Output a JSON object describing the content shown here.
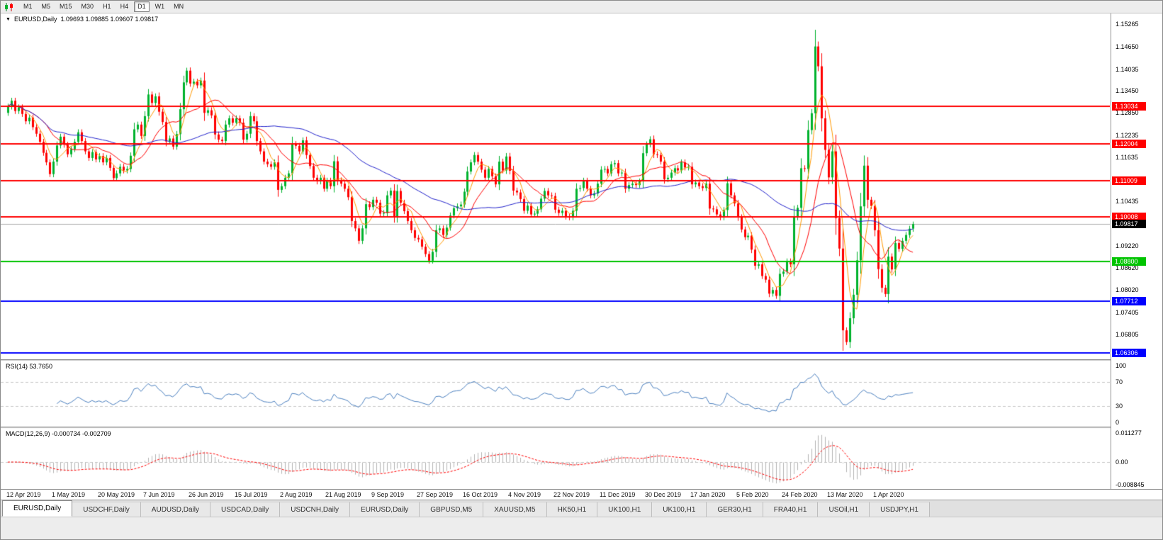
{
  "toolbar": {
    "timeframes": [
      "M1",
      "M5",
      "M15",
      "M30",
      "H1",
      "H4",
      "D1",
      "W1",
      "MN"
    ],
    "active_timeframe": "D1"
  },
  "chart": {
    "title": {
      "symbol": "EURUSD,Daily",
      "ohlc": "1.09693 1.09885 1.09607 1.09817"
    },
    "rsi_label": "RSI(14) 53.7650",
    "macd_label": "MACD(12,26,9) -0.000734 -0.002709"
  },
  "chart_data": {
    "type": "candlestick",
    "symbol": "EURUSD",
    "timeframe": "Daily",
    "last_ohlc": [
      1.09693,
      1.09885,
      1.09607,
      1.09817
    ],
    "first_open": 1.1285,
    "wick_rule": {
      "fraction": 0.25,
      "min": 0.0008
    },
    "y_range": [
      1.0613,
      1.1556
    ],
    "y_ticks": [
      "1.15265",
      "1.14650",
      "1.14035",
      "1.13450",
      "1.12850",
      "1.12235",
      "1.11635",
      "1.10435",
      "1.09220",
      "1.08620",
      "1.08020",
      "1.07405",
      "1.06805"
    ],
    "x_labels": [
      "12 Apr 2019",
      "1 May 2019",
      "20 May 2019",
      "7 Jun 2019",
      "26 Jun 2019",
      "15 Jul 2019",
      "2 Aug 2019",
      "21 Aug 2019",
      "9 Sep 2019",
      "27 Sep 2019",
      "16 Oct 2019",
      "4 Nov 2019",
      "22 Nov 2019",
      "11 Dec 2019",
      "30 Dec 2019",
      "17 Jan 2020",
      "5 Feb 2020",
      "24 Feb 2020",
      "13 Mar 2020",
      "1 Apr 2020"
    ],
    "x_label_step": 13,
    "current_price": {
      "value": 1.09817,
      "label": "1.09817",
      "line_color": "#b0b0b0",
      "badge_color": "#000000"
    },
    "hlines": [
      {
        "price": 1.13034,
        "label": "1.13034",
        "color": "#ff0000"
      },
      {
        "price": 1.12004,
        "label": "1.12004",
        "color": "#ff0000"
      },
      {
        "price": 1.11009,
        "label": "1.11009",
        "color": "#ff0000"
      },
      {
        "price": 1.10008,
        "label": "1.10008",
        "color": "#ff0000"
      },
      {
        "price": 1.088,
        "label": "1.08800",
        "color": "#00c400"
      },
      {
        "price": 1.07712,
        "label": "1.07712",
        "color": "#0000ff"
      },
      {
        "price": 1.06306,
        "label": "1.06306",
        "color": "#0000ff"
      }
    ],
    "candle_colors": {
      "up": "#00b22d",
      "down": "#ff0000"
    },
    "moving_averages": [
      {
        "period": 5,
        "color": "#ff9900"
      },
      {
        "period": 12,
        "color": "#ff0000"
      },
      {
        "period": 45,
        "color": "#2222cc"
      }
    ],
    "closes": [
      1.1302,
      1.1318,
      1.129,
      1.13,
      1.1282,
      1.1262,
      1.1272,
      1.1246,
      1.1228,
      1.1206,
      1.1176,
      1.115,
      1.1118,
      1.1152,
      1.1196,
      1.122,
      1.1198,
      1.1172,
      1.1186,
      1.1206,
      1.1232,
      1.1208,
      1.118,
      1.1162,
      1.1178,
      1.1158,
      1.1167,
      1.115,
      1.1162,
      1.1135,
      1.1107,
      1.112,
      1.1138,
      1.1128,
      1.1132,
      1.1168,
      1.124,
      1.1253,
      1.1222,
      1.1276,
      1.1335,
      1.1312,
      1.133,
      1.1288,
      1.126,
      1.1207,
      1.1215,
      1.1193,
      1.1227,
      1.1295,
      1.1368,
      1.14,
      1.1365,
      1.137,
      1.136,
      1.1373,
      1.1285,
      1.1292,
      1.1278,
      1.1226,
      1.1212,
      1.1208,
      1.1253,
      1.127,
      1.1258,
      1.127,
      1.1258,
      1.1212,
      1.1228,
      1.1276,
      1.1262,
      1.1208,
      1.118,
      1.1152,
      1.1145,
      1.1138,
      1.115,
      1.1075,
      1.1085,
      1.1108,
      1.112,
      1.12,
      1.1195,
      1.118,
      1.121,
      1.117,
      1.114,
      1.1108,
      1.1098,
      1.1108,
      1.1078,
      1.11,
      1.1085,
      1.1153,
      1.1101,
      1.1092,
      1.1078,
      1.1055,
      1.099,
      1.097,
      1.0936,
      1.097,
      1.1036,
      1.1028,
      1.1048,
      1.104,
      1.101,
      1.1012,
      1.106,
      1.1073,
      1.1003,
      1.1072,
      1.104,
      1.1017,
      1.099,
      1.0965,
      1.0944,
      1.094,
      1.092,
      1.09,
      1.0882,
      1.0906,
      1.0965,
      1.097,
      1.0952,
      1.0972,
      1.1005,
      1.1025,
      1.103,
      1.1035,
      1.107,
      1.1125,
      1.115,
      1.117,
      1.1152,
      1.113,
      1.1108,
      1.1132,
      1.1112,
      1.109,
      1.1152,
      1.1128,
      1.1166,
      1.1127,
      1.1073,
      1.1068,
      1.105,
      1.1018,
      1.1032,
      1.1008,
      1.101,
      1.1022,
      1.1051,
      1.1072,
      1.106,
      1.1058,
      1.1021,
      1.1012,
      1.1018,
      1.1002,
      1.1,
      1.1018,
      1.1078,
      1.108,
      1.11,
      1.1078,
      1.106,
      1.1065,
      1.1092,
      1.113,
      1.1132,
      1.112,
      1.1145,
      1.1148,
      1.112,
      1.1122,
      1.1078,
      1.1088,
      1.1092,
      1.1088,
      1.1098,
      1.1175,
      1.1199,
      1.1213,
      1.1172,
      1.117,
      1.1152,
      1.1104,
      1.1108,
      1.1122,
      1.1134,
      1.1128,
      1.115,
      1.1136,
      1.1138,
      1.109,
      1.1095,
      1.1085,
      1.108,
      1.1092,
      1.1024,
      1.1022,
      1.1008,
      1.1,
      1.102,
      1.1093,
      1.106,
      1.1038,
      1.1,
      1.0967,
      1.0946,
      1.095,
      1.0912,
      1.0868,
      1.0872,
      1.084,
      1.083,
      1.0792,
      1.0802,
      1.0786,
      1.0846,
      1.0852,
      1.088,
      1.0872,
      1.1,
      1.1026,
      1.1134,
      1.1132,
      1.1238,
      1.1284,
      1.1466,
      1.1412,
      1.127,
      1.1184,
      1.1109,
      1.118,
      1.0998,
      1.0915,
      1.0692,
      1.066,
      1.0725,
      1.0789,
      1.0883,
      1.103,
      1.1141,
      1.1048,
      1.1031,
      1.0965,
      1.0859,
      1.0808,
      1.0791,
      1.0893,
      1.0858,
      1.093,
      1.0914,
      1.0936,
      1.0952,
      1.0969,
      1.09817
    ],
    "indicators": [
      {
        "name": "RSI",
        "period": 14,
        "display_value": "53.7650",
        "levels": [
          70,
          30
        ],
        "scale_ticks": [
          "100",
          "70",
          "30",
          "0"
        ],
        "range": [
          0,
          100
        ],
        "color": "#4a7fbf"
      },
      {
        "name": "MACD",
        "fast": 12,
        "slow": 26,
        "signal": 9,
        "display_values": [
          "-0.000734",
          "-0.002709"
        ],
        "scale_ticks": [
          "0.011277",
          "0.00",
          "-0.008845"
        ],
        "range": [
          -0.0095,
          0.0118
        ],
        "histogram_color": "#b4b4b4",
        "signal_color": "#ff0000"
      }
    ]
  },
  "tabs": {
    "active_index": 0,
    "items": [
      "EURUSD,Daily",
      "USDCHF,Daily",
      "AUDUSD,Daily",
      "USDCAD,Daily",
      "USDCNH,Daily",
      "EURUSD,Daily",
      "GBPUSD,M5",
      "XAUUSD,M5",
      "HK50,H1",
      "UK100,H1",
      "UK100,H1",
      "GER30,H1",
      "FRA40,H1",
      "USOil,H1",
      "USDJPY,H1"
    ]
  }
}
